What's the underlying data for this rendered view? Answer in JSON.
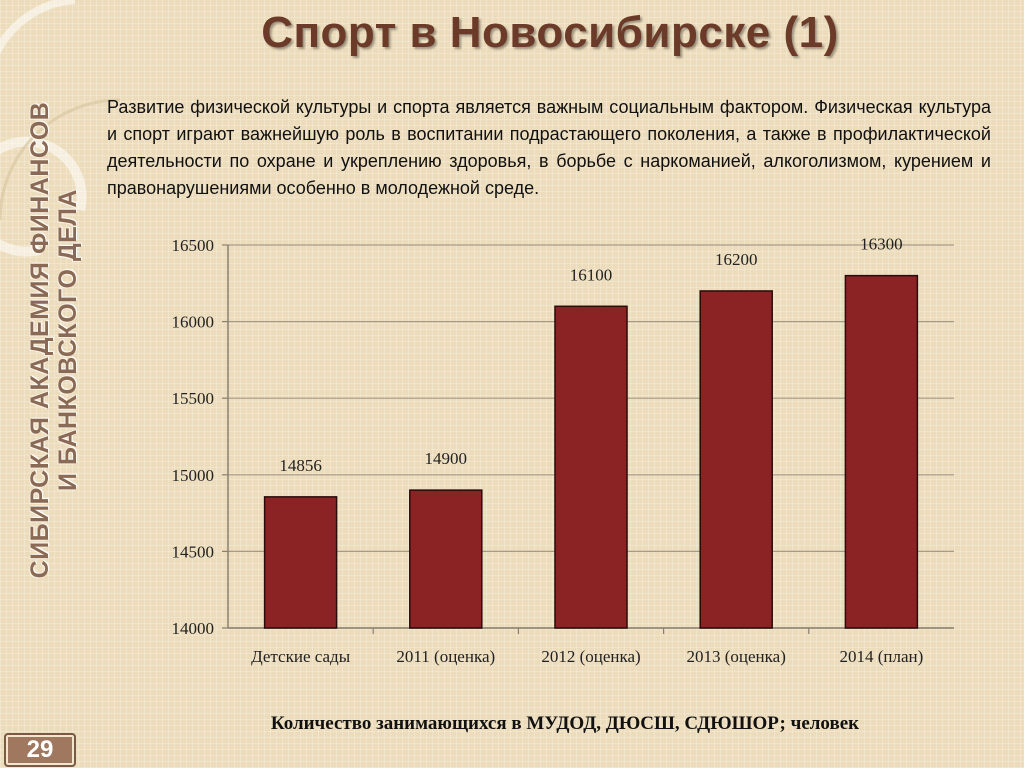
{
  "slide": {
    "title": "Спорт в Новосибирске (1)",
    "intro": "Развитие физической культуры и спорта является важным социальным фактором. Физическая культура и спорт играют важнейшую роль в воспитании подрастающего поколения, а также в профилактической деятельности по охране и укреплению здоровья, в борьбе с наркоманией, алкоголизмом, курением и правонарушениями особенно в молодежной среде.",
    "side_label_line1": "Сибирская академия финансов",
    "side_label_line2": "и банковского дела",
    "page_number": "29",
    "caption": "Количество занимающихся в МУДОД, ДЮСШ, СДЮШОР; человек"
  },
  "colors": {
    "bar": "#8b2325",
    "title": "#6b3a28",
    "background": "#ecdcbb",
    "side_label": "#8a6a55"
  },
  "chart_data": {
    "type": "bar",
    "categories": [
      "Детские сады",
      "2011 (оценка)",
      "2012 (оценка)",
      "2013 (оценка)",
      "2014 (план)"
    ],
    "values": [
      14856,
      14900,
      16100,
      16200,
      16300
    ],
    "ylim": [
      14000,
      16500
    ],
    "yticks": [
      14000,
      14500,
      15000,
      15500,
      16000,
      16500
    ],
    "grid": true,
    "title": "",
    "xlabel": "",
    "ylabel": ""
  }
}
